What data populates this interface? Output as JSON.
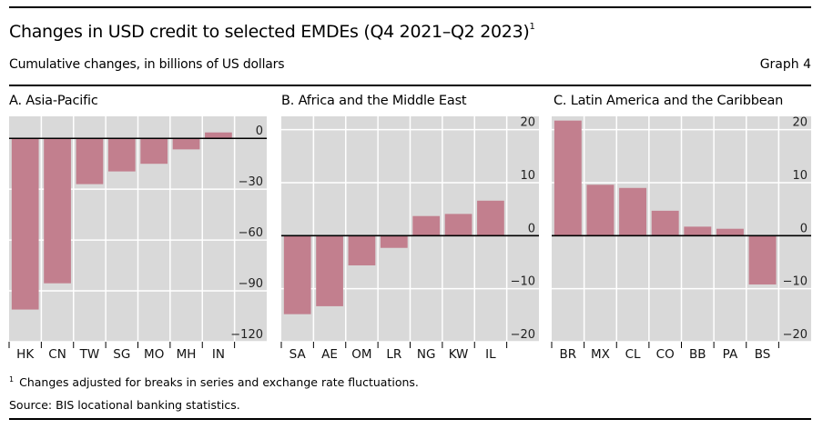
{
  "header": {
    "title": "Changes in USD credit to selected EMDEs (Q4 2021–Q2 2023)",
    "title_footnote_marker": "1",
    "subtitle": "Cumulative changes, in billions of US dollars",
    "graph_number": "Graph 4"
  },
  "footer": {
    "footnote_marker": "1",
    "footnote": "Changes adjusted for breaks in series and exchange rate fluctuations.",
    "source": "Source: BIS locational banking statistics."
  },
  "colors": {
    "bar": "#c27f8e",
    "plot_background": "#d9d9d9",
    "gridline": "#ffffff",
    "zero_line": "#000000"
  },
  "chart_data": [
    {
      "type": "bar",
      "title": "A. Asia-Pacific",
      "xlabel": "",
      "ylabel": "",
      "categories": [
        "HK",
        "CN",
        "TW",
        "SG",
        "MO",
        "MH",
        "IN"
      ],
      "values": [
        -101,
        -85.5,
        -27,
        -19.5,
        -15,
        -6.5,
        3.5
      ],
      "ylim": [
        -120,
        0
      ],
      "yticks": [
        0,
        -30,
        -60,
        -90,
        -120
      ],
      "ytick_labels": [
        "0",
        "−30",
        "−60",
        "−90",
        "−120"
      ],
      "grid": true,
      "y_axis_side": "right"
    },
    {
      "type": "bar",
      "title": "B. Africa and the Middle East",
      "xlabel": "",
      "ylabel": "",
      "categories": [
        "SA",
        "AE",
        "OM",
        "LR",
        "NG",
        "KW",
        "IL"
      ],
      "values": [
        -14.8,
        -13.3,
        -5.6,
        -2.3,
        3.7,
        4.1,
        6.6
      ],
      "ylim": [
        -20,
        20
      ],
      "yticks": [
        20,
        10,
        0,
        -10,
        -20
      ],
      "ytick_labels": [
        "20",
        "10",
        "0",
        "−10",
        "−20"
      ],
      "grid": true,
      "y_axis_side": "right"
    },
    {
      "type": "bar",
      "title": "C. Latin America and the Caribbean",
      "xlabel": "",
      "ylabel": "",
      "categories": [
        "BR",
        "MX",
        "CL",
        "CO",
        "BB",
        "PA",
        "BS"
      ],
      "values": [
        21.7,
        9.6,
        9.0,
        4.7,
        1.7,
        1.3,
        -9.2
      ],
      "ylim": [
        -20,
        20
      ],
      "yticks": [
        20,
        10,
        0,
        -10,
        -20
      ],
      "ytick_labels": [
        "20",
        "10",
        "0",
        "−10",
        "−20"
      ],
      "grid": true,
      "y_axis_side": "right"
    }
  ]
}
